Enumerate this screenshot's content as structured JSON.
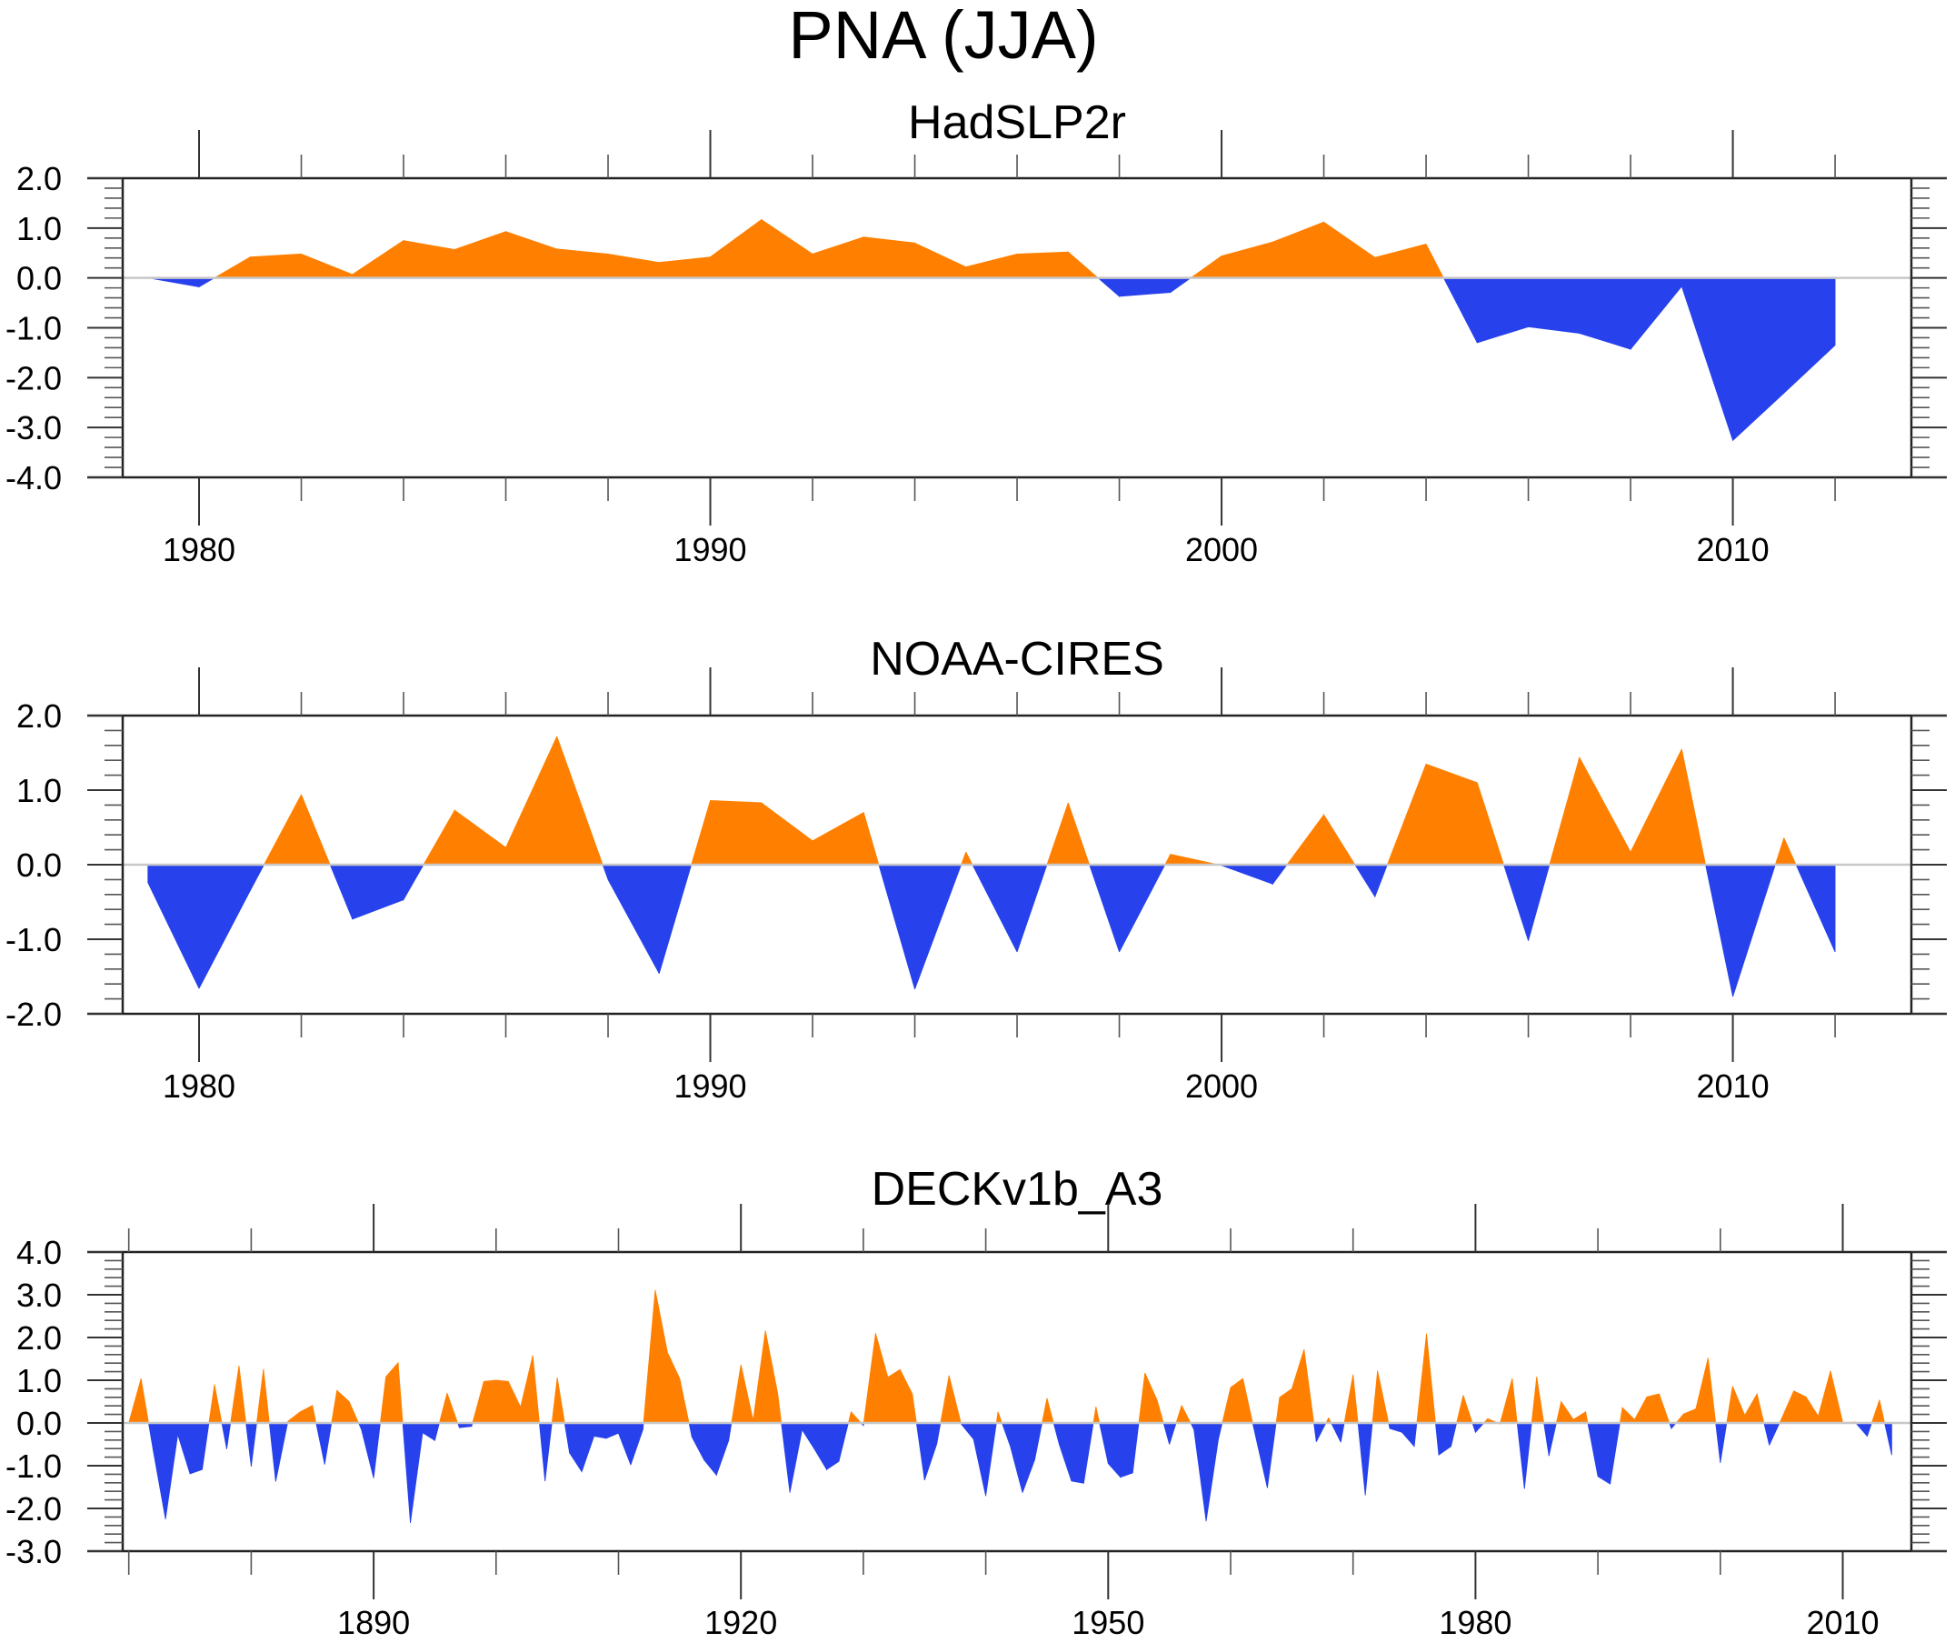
{
  "title": "PNA (JJA)",
  "colors": {
    "positive": "#FF8000",
    "negative": "#2742EC",
    "zero_line": "#C8C8C8",
    "axis": "#222222"
  },
  "chart_data": [
    {
      "type": "area",
      "title": "HadSLP2r",
      "xlabel": "",
      "ylabel": "",
      "xlim": [
        1978,
        2014
      ],
      "ylim": [
        -4.0,
        2.0
      ],
      "yticks": [
        "2.0",
        "1.0",
        "0.0",
        "-1.0",
        "-2.0",
        "-3.0",
        "-4.0"
      ],
      "ytick_values": [
        2,
        1,
        0,
        -1,
        -2,
        -3,
        -4
      ],
      "xticks": [
        "1980",
        "1990",
        "2000",
        "2010"
      ],
      "xtick_values": [
        1980,
        1990,
        2000,
        2010
      ],
      "x_minor_step": 2,
      "y_minor_step": 0.2,
      "fill_positive": "orange",
      "fill_negative": "blue",
      "grid": false,
      "x": [
        1979,
        1980,
        1981,
        1982,
        1983,
        1984,
        1985,
        1986,
        1987,
        1988,
        1989,
        1990,
        1991,
        1992,
        1993,
        1994,
        1995,
        1996,
        1997,
        1998,
        1999,
        2000,
        2001,
        2002,
        2003,
        2004,
        2005,
        2006,
        2007,
        2008,
        2009,
        2010,
        2011,
        2012
      ],
      "values": [
        0.0,
        -0.18,
        0.42,
        0.48,
        0.07,
        0.75,
        0.57,
        0.93,
        0.58,
        0.48,
        0.31,
        0.42,
        1.17,
        0.48,
        0.82,
        0.7,
        0.22,
        0.48,
        0.52,
        -0.37,
        -0.29,
        0.44,
        0.72,
        1.12,
        0.41,
        0.68,
        -1.3,
        -0.98,
        -1.11,
        -1.43,
        -0.17,
        -3.26,
        -2.31,
        -1.35
      ]
    },
    {
      "type": "area",
      "title": "NOAA-CIRES",
      "xlabel": "",
      "ylabel": "",
      "xlim": [
        1978,
        2014
      ],
      "ylim": [
        -2.0,
        2.0
      ],
      "yticks": [
        "2.0",
        "1.0",
        "0.0",
        "-1.0",
        "-2.0"
      ],
      "ytick_values": [
        2,
        1,
        0,
        -1,
        -2
      ],
      "xticks": [
        "1980",
        "1990",
        "2000",
        "2010"
      ],
      "xtick_values": [
        1980,
        1990,
        2000,
        2010
      ],
      "x_minor_step": 2,
      "y_minor_step": 0.2,
      "fill_positive": "orange",
      "fill_negative": "blue",
      "grid": false,
      "x": [
        1979,
        1980,
        1981,
        1982,
        1983,
        1984,
        1985,
        1986,
        1987,
        1988,
        1989,
        1990,
        1991,
        1992,
        1993,
        1994,
        1995,
        1996,
        1997,
        1998,
        1999,
        2000,
        2001,
        2002,
        2003,
        2004,
        2005,
        2006,
        2007,
        2008,
        2009,
        2010,
        2011,
        2012
      ],
      "values": [
        -0.24,
        -1.66,
        -0.35,
        0.94,
        -0.73,
        -0.47,
        0.73,
        0.23,
        1.72,
        -0.2,
        -1.46,
        0.86,
        0.83,
        0.32,
        0.7,
        -1.67,
        0.17,
        -1.17,
        0.83,
        -1.17,
        0.14,
        -0.01,
        -0.26,
        0.67,
        -0.43,
        1.35,
        1.1,
        -1.02,
        1.44,
        0.17,
        1.55,
        -1.77,
        0.36,
        -1.17
      ]
    },
    {
      "type": "area",
      "title": "DECKv1b_A3",
      "xlabel": "",
      "ylabel": "",
      "xlim": [
        1869,
        2017
      ],
      "ylim": [
        -3.0,
        4.0
      ],
      "yticks": [
        "4.0",
        "3.0",
        "2.0",
        "1.0",
        "0.0",
        "-1.0",
        "-2.0",
        "-3.0"
      ],
      "ytick_values": [
        4,
        3,
        2,
        1,
        0,
        -1,
        -2,
        -3
      ],
      "xticks": [
        "1890",
        "1920",
        "1950",
        "1980",
        "2010"
      ],
      "xtick_values": [
        1890,
        1920,
        1950,
        1980,
        2010
      ],
      "x_minor_step": 10,
      "y_minor_step": 0.2,
      "fill_positive": "orange",
      "fill_negative": "blue",
      "grid": false,
      "x_start": 1870,
      "values": [
        0.0,
        1.04,
        -0.65,
        -2.25,
        -0.27,
        -1.19,
        -1.09,
        0.9,
        -0.61,
        1.34,
        -1.02,
        1.26,
        -1.37,
        0.04,
        0.26,
        0.41,
        -0.97,
        0.76,
        0.5,
        -0.15,
        -1.29,
        1.08,
        1.41,
        -2.34,
        -0.23,
        -0.41,
        0.7,
        -0.11,
        -0.08,
        0.97,
        1.0,
        0.97,
        0.37,
        1.58,
        -1.36,
        1.06,
        -0.7,
        -1.14,
        -0.31,
        -0.36,
        -0.24,
        -0.98,
        -0.15,
        3.11,
        1.65,
        1.04,
        -0.33,
        -0.87,
        -1.22,
        -0.41,
        1.36,
        0.06,
        2.16,
        0.7,
        -1.63,
        -0.16,
        -0.61,
        -1.09,
        -0.9,
        0.26,
        -0.06,
        2.1,
        1.07,
        1.25,
        0.68,
        -1.34,
        -0.49,
        1.11,
        -0.03,
        -0.38,
        -1.71,
        0.26,
        -0.54,
        -1.63,
        -0.86,
        0.58,
        -0.5,
        -1.36,
        -1.41,
        0.38,
        -0.95,
        -1.27,
        -1.17,
        1.17,
        0.53,
        -0.5,
        0.41,
        -0.15,
        -2.3,
        -0.38,
        0.83,
        1.04,
        -0.26,
        -1.52,
        0.6,
        0.8,
        1.72,
        -0.44,
        0.12,
        -0.45,
        1.13,
        -1.69,
        1.22,
        -0.13,
        -0.22,
        -0.55,
        2.09,
        -0.75,
        -0.55,
        0.65,
        -0.22,
        0.1,
        -0.02,
        1.04,
        -1.54,
        1.08,
        -0.77,
        0.5,
        0.08,
        0.26,
        -1.25,
        -1.43,
        0.36,
        0.08,
        0.61,
        0.68,
        -0.13,
        0.21,
        0.33,
        1.52,
        -0.93,
        0.86,
        0.18,
        0.68,
        -0.52,
        0.1,
        0.75,
        0.61,
        0.16,
        1.22,
        0.01,
        0.02,
        -0.31,
        0.54,
        -0.75
      ]
    }
  ]
}
